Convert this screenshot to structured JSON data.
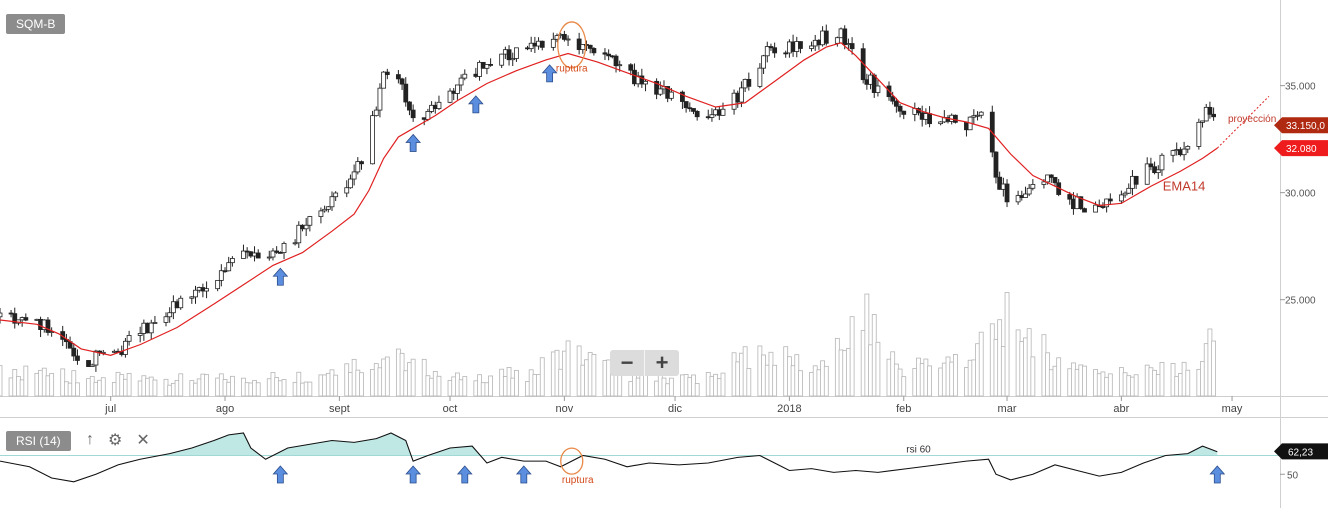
{
  "symbol": "SQM-B",
  "zoom": {
    "minus": "−",
    "plus": "+"
  },
  "rsi_panel": {
    "label": "RSI (14)",
    "up_icon": "↑",
    "gear_icon": "⚙",
    "close_icon": "✕"
  },
  "chart_data": [
    {
      "type": "candlestick",
      "title": "SQM-B",
      "ylim": [
        20500,
        39000
      ],
      "yticks": [
        25000,
        30000,
        35000
      ],
      "ytick_labels": [
        "25.000",
        "30.000",
        "35.000"
      ],
      "xticks": [
        {
          "label": "jul",
          "day": 6
        },
        {
          "label": "ago",
          "day": 37
        },
        {
          "label": "sept",
          "day": 68
        },
        {
          "label": "oct",
          "day": 98
        },
        {
          "label": "nov",
          "day": 129
        },
        {
          "label": "dic",
          "day": 159
        },
        {
          "label": "2018",
          "day": 190
        },
        {
          "label": "feb",
          "day": 221
        },
        {
          "label": "mar",
          "day": 249
        },
        {
          "label": "abr",
          "day": 280
        },
        {
          "label": "may",
          "day": 310
        }
      ],
      "x_range_days": [
        -24,
        323
      ],
      "close_path": [
        [
          -24,
          24200
        ],
        [
          -14,
          24000
        ],
        [
          -8,
          23500
        ],
        [
          -2,
          22200
        ],
        [
          6,
          22300
        ],
        [
          14,
          23500
        ],
        [
          24,
          24800
        ],
        [
          34,
          25800
        ],
        [
          42,
          27300
        ],
        [
          50,
          27000
        ],
        [
          56,
          28000
        ],
        [
          60,
          28600
        ],
        [
          66,
          29800
        ],
        [
          70,
          30500
        ],
        [
          74,
          31600
        ],
        [
          77,
          33500
        ],
        [
          80,
          35600
        ],
        [
          84,
          35200
        ],
        [
          88,
          33300
        ],
        [
          92,
          33800
        ],
        [
          96,
          34400
        ],
        [
          102,
          35400
        ],
        [
          108,
          36000
        ],
        [
          114,
          36400
        ],
        [
          120,
          36700
        ],
        [
          126,
          37100
        ],
        [
          130,
          37100
        ],
        [
          134,
          36600
        ],
        [
          140,
          36300
        ],
        [
          146,
          35600
        ],
        [
          152,
          35000
        ],
        [
          160,
          34300
        ],
        [
          166,
          33800
        ],
        [
          172,
          33700
        ],
        [
          178,
          35000
        ],
        [
          184,
          36500
        ],
        [
          190,
          36700
        ],
        [
          196,
          37000
        ],
        [
          200,
          37300
        ],
        [
          204,
          37400
        ],
        [
          206,
          36700
        ],
        [
          210,
          35600
        ],
        [
          214,
          34700
        ],
        [
          220,
          34000
        ],
        [
          226,
          33600
        ],
        [
          232,
          33400
        ],
        [
          238,
          33200
        ],
        [
          242,
          33500
        ],
        [
          244,
          32200
        ],
        [
          247,
          30500
        ],
        [
          250,
          29500
        ],
        [
          254,
          30200
        ],
        [
          260,
          30800
        ],
        [
          266,
          29600
        ],
        [
          272,
          29300
        ],
        [
          278,
          29500
        ],
        [
          284,
          30600
        ],
        [
          290,
          31400
        ],
        [
          296,
          31800
        ],
        [
          300,
          32700
        ],
        [
          303,
          33800
        ],
        [
          306,
          33150
        ]
      ],
      "ema14_path": [
        [
          -24,
          24050
        ],
        [
          -14,
          23850
        ],
        [
          -8,
          23400
        ],
        [
          -2,
          22700
        ],
        [
          6,
          22400
        ],
        [
          14,
          22900
        ],
        [
          24,
          23700
        ],
        [
          34,
          24800
        ],
        [
          42,
          25700
        ],
        [
          50,
          26600
        ],
        [
          58,
          27200
        ],
        [
          66,
          28200
        ],
        [
          72,
          29000
        ],
        [
          76,
          30100
        ],
        [
          80,
          31600
        ],
        [
          84,
          32600
        ],
        [
          88,
          33000
        ],
        [
          94,
          33600
        ],
        [
          100,
          34300
        ],
        [
          108,
          35100
        ],
        [
          116,
          35700
        ],
        [
          124,
          36200
        ],
        [
          130,
          36500
        ],
        [
          138,
          36100
        ],
        [
          146,
          35600
        ],
        [
          154,
          35100
        ],
        [
          162,
          34500
        ],
        [
          170,
          34000
        ],
        [
          178,
          34200
        ],
        [
          186,
          35200
        ],
        [
          194,
          36200
        ],
        [
          200,
          36800
        ],
        [
          204,
          37000
        ],
        [
          208,
          36400
        ],
        [
          214,
          35300
        ],
        [
          220,
          34200
        ],
        [
          226,
          33800
        ],
        [
          232,
          33500
        ],
        [
          238,
          33300
        ],
        [
          244,
          33000
        ],
        [
          250,
          31800
        ],
        [
          256,
          30800
        ],
        [
          262,
          30300
        ],
        [
          268,
          29800
        ],
        [
          274,
          29400
        ],
        [
          280,
          29500
        ],
        [
          288,
          30300
        ],
        [
          296,
          31000
        ],
        [
          302,
          31600
        ],
        [
          306,
          32080
        ]
      ],
      "projection_path": [
        [
          306,
          32080
        ],
        [
          320,
          34500
        ]
      ],
      "price_labels": [
        {
          "value": 33150,
          "label": "33.150,0",
          "color": "#b02a12"
        },
        {
          "value": 32080,
          "label": "32.080",
          "color": "#ee1c1c"
        }
      ],
      "volume_profile": [
        [
          -24,
          0.3
        ],
        [
          0,
          0.2
        ],
        [
          30,
          0.18
        ],
        [
          60,
          0.22
        ],
        [
          80,
          0.45
        ],
        [
          100,
          0.2
        ],
        [
          120,
          0.25
        ],
        [
          130,
          0.5
        ],
        [
          150,
          0.18
        ],
        [
          170,
          0.22
        ],
        [
          180,
          0.5
        ],
        [
          200,
          0.3
        ],
        [
          210,
          0.9
        ],
        [
          220,
          0.3
        ],
        [
          240,
          0.45
        ],
        [
          250,
          0.9
        ],
        [
          262,
          0.4
        ],
        [
          280,
          0.25
        ],
        [
          300,
          0.3
        ],
        [
          306,
          0.7
        ]
      ],
      "annotations": [
        {
          "text": "ruptura",
          "day": 131,
          "value": 35650,
          "color": "#d34a1b"
        },
        {
          "text": "EMA14",
          "day": 297,
          "value": 30100,
          "color": "#c0392b"
        },
        {
          "text": "proyección",
          "day": 322,
          "value": 33300,
          "color": "#c0392b"
        }
      ],
      "signal_arrows": [
        52,
        88,
        105,
        125
      ],
      "breakout_circle": {
        "day": 131,
        "value": 36900
      },
      "line_colors": {
        "ema": "#e02020",
        "up": "#ffffff",
        "down": "#222222",
        "volume": "#b5b5b5",
        "circle": "#e88a4a",
        "arrow": "#5b8ede"
      }
    },
    {
      "type": "line",
      "title": "RSI (14)",
      "ylim": [
        32,
        80
      ],
      "ytick_labels": [
        "50"
      ],
      "reference_line": 60,
      "reference_label": "rsi 60",
      "last_value": 62.23,
      "last_label": "62,23",
      "fill_color": "#bfe8e5",
      "rsi_path": [
        [
          -24,
          57
        ],
        [
          -16,
          54
        ],
        [
          -10,
          48
        ],
        [
          -4,
          46
        ],
        [
          2,
          50
        ],
        [
          8,
          55
        ],
        [
          14,
          58
        ],
        [
          22,
          61
        ],
        [
          28,
          64
        ],
        [
          34,
          68
        ],
        [
          38,
          71
        ],
        [
          42,
          72
        ],
        [
          44,
          64
        ],
        [
          48,
          58
        ],
        [
          54,
          64
        ],
        [
          60,
          66
        ],
        [
          66,
          68
        ],
        [
          72,
          67
        ],
        [
          78,
          69
        ],
        [
          82,
          72
        ],
        [
          86,
          68
        ],
        [
          88,
          57
        ],
        [
          92,
          60
        ],
        [
          98,
          64
        ],
        [
          104,
          65
        ],
        [
          108,
          56
        ],
        [
          112,
          59
        ],
        [
          118,
          57
        ],
        [
          124,
          57
        ],
        [
          128,
          54
        ],
        [
          134,
          60
        ],
        [
          140,
          58
        ],
        [
          146,
          54
        ],
        [
          152,
          56
        ],
        [
          160,
          55
        ],
        [
          168,
          56
        ],
        [
          176,
          59
        ],
        [
          182,
          60
        ],
        [
          186,
          56
        ],
        [
          190,
          52
        ],
        [
          196,
          53
        ],
        [
          202,
          51
        ],
        [
          208,
          52
        ],
        [
          214,
          51
        ],
        [
          222,
          53
        ],
        [
          230,
          55
        ],
        [
          238,
          57
        ],
        [
          244,
          58
        ],
        [
          246,
          50
        ],
        [
          250,
          47
        ],
        [
          256,
          50
        ],
        [
          262,
          55
        ],
        [
          268,
          52
        ],
        [
          274,
          49
        ],
        [
          280,
          51
        ],
        [
          286,
          56
        ],
        [
          292,
          60
        ],
        [
          298,
          61
        ],
        [
          302,
          65
        ],
        [
          306,
          62
        ]
      ],
      "signal_arrows": [
        52,
        88,
        102,
        118,
        306
      ],
      "breakout_circle": {
        "day": 131,
        "value": 57
      }
    }
  ]
}
